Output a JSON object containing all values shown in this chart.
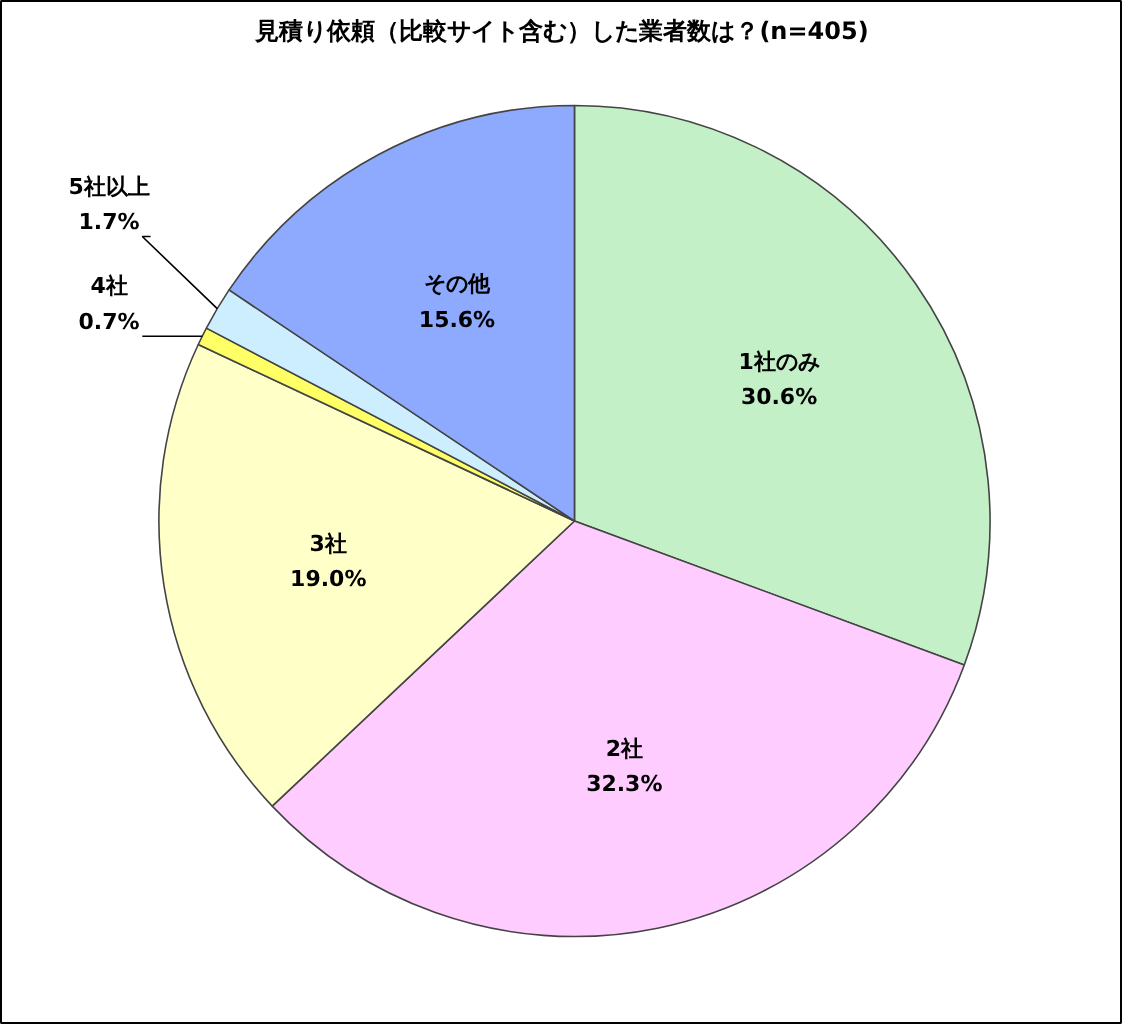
{
  "chart_data": {
    "type": "pie",
    "title": "見積り依頼（比較サイト含む）した業者数は？(n=405)",
    "categories": [
      "1社のみ",
      "2社",
      "3社",
      "4社",
      "5社以上",
      "その他"
    ],
    "values": [
      30.6,
      32.3,
      19.0,
      0.7,
      1.7,
      15.6
    ],
    "value_labels": [
      "30.6%",
      "32.3%",
      "19.0%",
      "0.7%",
      "1.7%",
      "15.6%"
    ],
    "colors": [
      "#c4f0c8",
      "#ffccff",
      "#ffffc8",
      "#ffff66",
      "#cceeff",
      "#8eaaff"
    ]
  }
}
